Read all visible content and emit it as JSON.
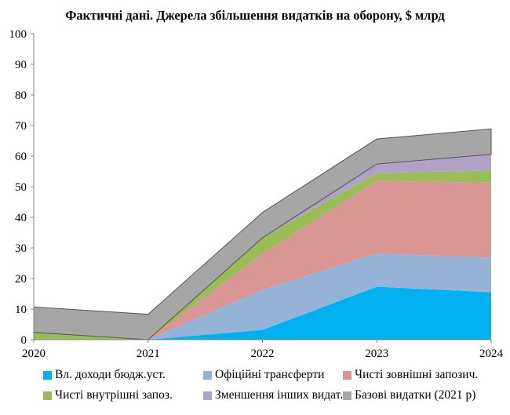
{
  "chart_data": {
    "type": "area",
    "stacked": true,
    "title": "Фактичні дані. Джерела збільшення видатків на оборону, $ млрд",
    "xlabel": "",
    "ylabel": "",
    "x": [
      "2020",
      "2021",
      "2022",
      "2023",
      "2024"
    ],
    "ylim": [
      0,
      100
    ],
    "yticks": [
      0,
      10,
      20,
      30,
      40,
      50,
      60,
      70,
      80,
      90,
      100
    ],
    "grid": false,
    "legend_position": "bottom",
    "series": [
      {
        "name": "Вл. доходи бюдж.уст.",
        "color": "#00B0F0",
        "values": [
          0,
          0,
          3.2,
          17.3,
          15.5
        ]
      },
      {
        "name": "Офіційні трансферти",
        "color": "#95B3D7",
        "values": [
          0,
          0,
          13.1,
          10.9,
          11.3
        ]
      },
      {
        "name": "Чисті зовнішні запозич.",
        "color": "#D99594",
        "values": [
          0,
          0,
          11.7,
          23.7,
          24.5
        ]
      },
      {
        "name": "Чисті внутрішні запоз.",
        "color": "#9BBB59",
        "values": [
          2.4,
          0,
          5.3,
          2.6,
          4.0
        ]
      },
      {
        "name": "Зменшення інших видат.",
        "color": "#B2A1C7",
        "values": [
          0,
          0,
          0,
          2.9,
          5.3
        ]
      },
      {
        "name": "Базові видатки (2021 р)",
        "color": "#A6A6A6",
        "values": [
          8.3,
          8.3,
          8.3,
          8.2,
          8.3
        ]
      }
    ]
  }
}
